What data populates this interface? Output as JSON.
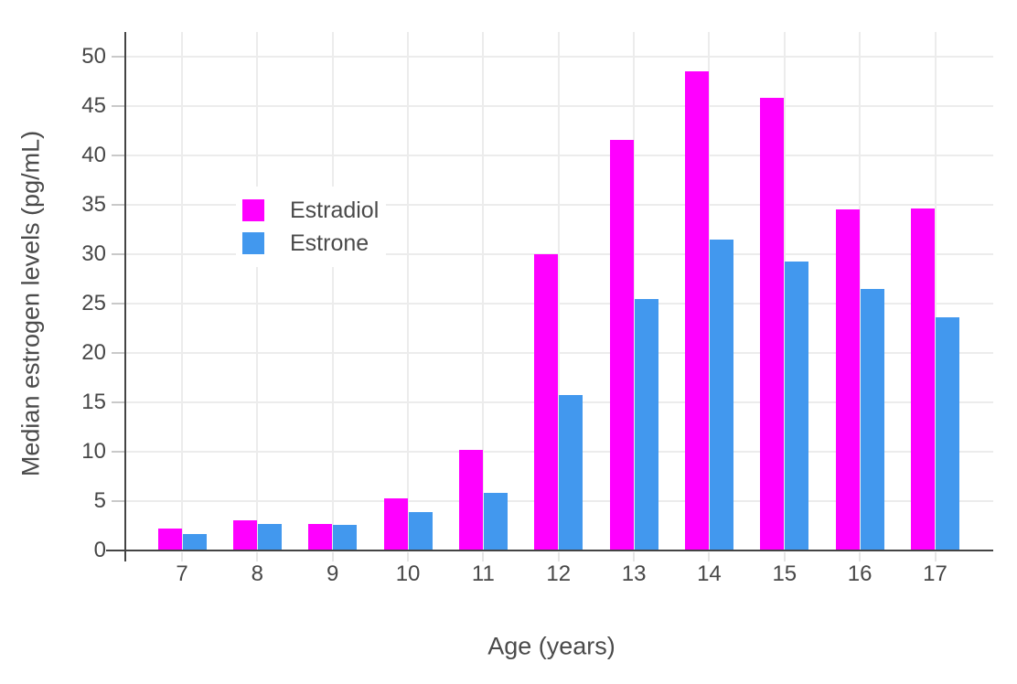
{
  "chart_data": {
    "type": "bar",
    "title": "",
    "xlabel": "Age (years)",
    "ylabel": "Median estrogen levels (pg/mL)",
    "categories": [
      "7",
      "8",
      "9",
      "10",
      "11",
      "12",
      "13",
      "14",
      "15",
      "16",
      "17"
    ],
    "series": [
      {
        "name": "Estradiol",
        "color": "#ff00ff",
        "values": [
          2.2,
          3.1,
          2.7,
          5.3,
          10.2,
          30.0,
          41.6,
          48.5,
          45.8,
          34.5,
          34.6
        ]
      },
      {
        "name": "Estrone",
        "color": "#4298ee",
        "values": [
          1.7,
          2.7,
          2.6,
          3.9,
          5.8,
          15.7,
          25.5,
          31.5,
          29.3,
          26.5,
          23.6
        ]
      }
    ],
    "ylim": [
      0,
      50
    ],
    "yticks": [
      0,
      5,
      10,
      15,
      20,
      25,
      30,
      35,
      40,
      45,
      50
    ],
    "grid": true,
    "legend_position": "inside-top-left",
    "colors": {
      "grid": "#ececec",
      "axis": "#444444",
      "tick_label": "#474747"
    }
  }
}
